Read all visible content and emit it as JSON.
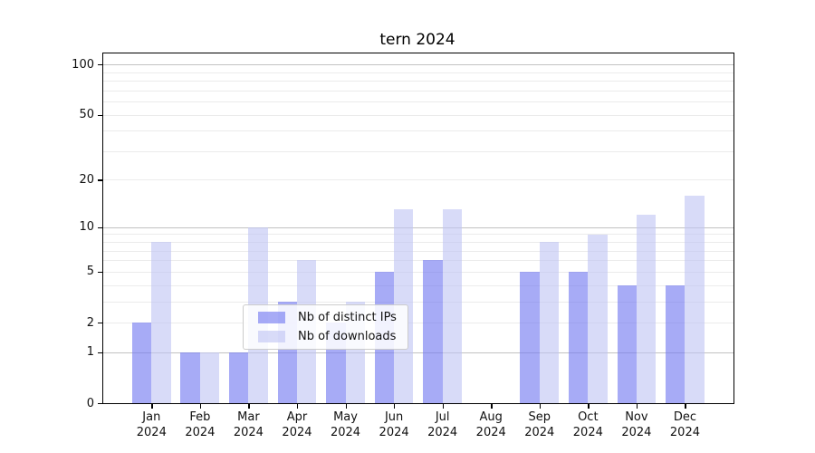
{
  "chart_data": {
    "type": "bar",
    "title": "tern 2024",
    "categories": [
      "Jan",
      "Feb",
      "Mar",
      "Apr",
      "May",
      "Jun",
      "Jul",
      "Aug",
      "Sep",
      "Oct",
      "Nov",
      "Dec"
    ],
    "year_label": "2024",
    "series": [
      {
        "name": "Nb of distinct IPs",
        "color": "rgba(113,120,241,0.62)",
        "values": [
          2,
          1,
          1,
          3,
          2,
          5,
          6,
          0,
          5,
          5,
          4,
          4
        ]
      },
      {
        "name": "Nb of downloads",
        "color": "rgba(190,195,243,0.60)",
        "values": [
          8,
          1,
          10,
          6,
          3,
          13,
          13,
          0,
          8,
          9,
          12,
          16
        ]
      }
    ],
    "yticks": [
      0,
      1,
      2,
      5,
      10,
      20,
      50,
      100
    ],
    "major_gridlines": [
      1,
      10,
      100
    ],
    "minor_gridlines": [
      2,
      3,
      4,
      5,
      6,
      7,
      8,
      9,
      20,
      30,
      40,
      50,
      60,
      70,
      80,
      90
    ],
    "scale": "log1p",
    "ylim": [
      0,
      116
    ],
    "xlabel": "",
    "ylabel": "",
    "grid": true,
    "legend_position": "lower center"
  }
}
